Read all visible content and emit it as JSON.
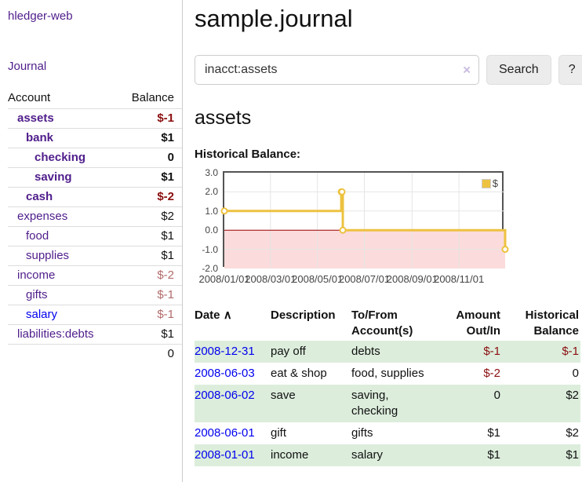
{
  "app": {
    "title": "hledger-web"
  },
  "colors": {
    "accent_purple": "#4f1d8b",
    "link_blue": "#0000ee",
    "negative_strong": "#8b0e0e",
    "negative_muted": "#b36b6b",
    "row_stripe_green": "#dceddc",
    "chart_gold": "#edc240",
    "chart_negative_fill": "#fbdbdb",
    "chart_zero_line": "#990000",
    "chart_grid": "#e5e5e5",
    "chart_border": "#545454"
  },
  "sidebar": {
    "journal_label": "Journal",
    "table": {
      "account_header": "Account",
      "balance_header": "Balance",
      "rows": [
        {
          "name": "assets",
          "balance": "$-1",
          "depth": 0,
          "bold": true,
          "neg": "strong",
          "link": "purple"
        },
        {
          "name": "bank",
          "balance": "$1",
          "depth": 1,
          "bold": true,
          "neg": "",
          "link": "purple"
        },
        {
          "name": "checking",
          "balance": "0",
          "depth": 2,
          "bold": true,
          "neg": "",
          "link": "purple"
        },
        {
          "name": "saving",
          "balance": "$1",
          "depth": 2,
          "bold": true,
          "neg": "",
          "link": "purple"
        },
        {
          "name": "cash",
          "balance": "$-2",
          "depth": 1,
          "bold": true,
          "neg": "strong",
          "link": "purple"
        },
        {
          "name": "expenses",
          "balance": "$2",
          "depth": 0,
          "bold": false,
          "neg": "",
          "link": "purple"
        },
        {
          "name": "food",
          "balance": "$1",
          "depth": 1,
          "bold": false,
          "neg": "",
          "link": "purple"
        },
        {
          "name": "supplies",
          "balance": "$1",
          "depth": 1,
          "bold": false,
          "neg": "",
          "link": "purple"
        },
        {
          "name": "income",
          "balance": "$-2",
          "depth": 0,
          "bold": false,
          "neg": "muted",
          "link": "purple"
        },
        {
          "name": "gifts",
          "balance": "$-1",
          "depth": 1,
          "bold": false,
          "neg": "muted",
          "link": "purple"
        },
        {
          "name": "salary",
          "balance": "$-1",
          "depth": 1,
          "bold": false,
          "neg": "muted",
          "link": "blue"
        },
        {
          "name": "liabilities:debts",
          "balance": "$1",
          "depth": 0,
          "bold": false,
          "neg": "",
          "link": "purple"
        }
      ],
      "total": "0"
    }
  },
  "main": {
    "title": "sample.journal",
    "search": {
      "value": "inacct:assets",
      "clear_icon": "×",
      "button_label": "Search",
      "help_label": "?"
    },
    "account_heading": "assets",
    "chart_heading": "Historical Balance:"
  },
  "chart_data": {
    "type": "line",
    "style": "step",
    "title": "Historical Balance",
    "series": [
      {
        "name": "$",
        "color": "#edc240",
        "points": [
          [
            "2008-01-01",
            1
          ],
          [
            "2008-06-01",
            2
          ],
          [
            "2008-06-02",
            2
          ],
          [
            "2008-06-03",
            0
          ],
          [
            "2008-12-31",
            -1
          ]
        ]
      }
    ],
    "xlim": [
      "2008-01-01",
      "2008-12-31"
    ],
    "ylim": [
      -2,
      3
    ],
    "x_ticks": [
      "2008/01/01",
      "2008/03/01",
      "2008/05/01",
      "2008/07/01",
      "2008/09/01",
      "2008/11/01"
    ],
    "y_ticks": [
      3.0,
      2.0,
      1.0,
      0.0,
      -1.0,
      -2.0
    ],
    "grid": true,
    "legend_position": "top-right",
    "negative_region": true
  },
  "register": {
    "headers": {
      "date": "Date",
      "sort_icon": "∧",
      "description": "Description",
      "tofrom": "To/From Account(s)",
      "amount": "Amount Out/In",
      "balance": "Historical Balance"
    },
    "rows": [
      {
        "date": "2008-12-31",
        "description": "pay off",
        "accounts": "debts",
        "amount": "$-1",
        "amount_neg": true,
        "balance": "$-1",
        "balance_neg": true,
        "stripe": true
      },
      {
        "date": "2008-06-03",
        "description": "eat & shop",
        "accounts": "food, supplies",
        "amount": "$-2",
        "amount_neg": true,
        "balance": "0",
        "balance_neg": false,
        "stripe": false
      },
      {
        "date": "2008-06-02",
        "description": "save",
        "accounts": "saving, checking",
        "amount": "0",
        "amount_neg": false,
        "balance": "$2",
        "balance_neg": false,
        "stripe": true
      },
      {
        "date": "2008-06-01",
        "description": "gift",
        "accounts": "gifts",
        "amount": "$1",
        "amount_neg": false,
        "balance": "$2",
        "balance_neg": false,
        "stripe": false
      },
      {
        "date": "2008-01-01",
        "description": "income",
        "accounts": "salary",
        "amount": "$1",
        "amount_neg": false,
        "balance": "$1",
        "balance_neg": false,
        "stripe": true
      }
    ]
  }
}
